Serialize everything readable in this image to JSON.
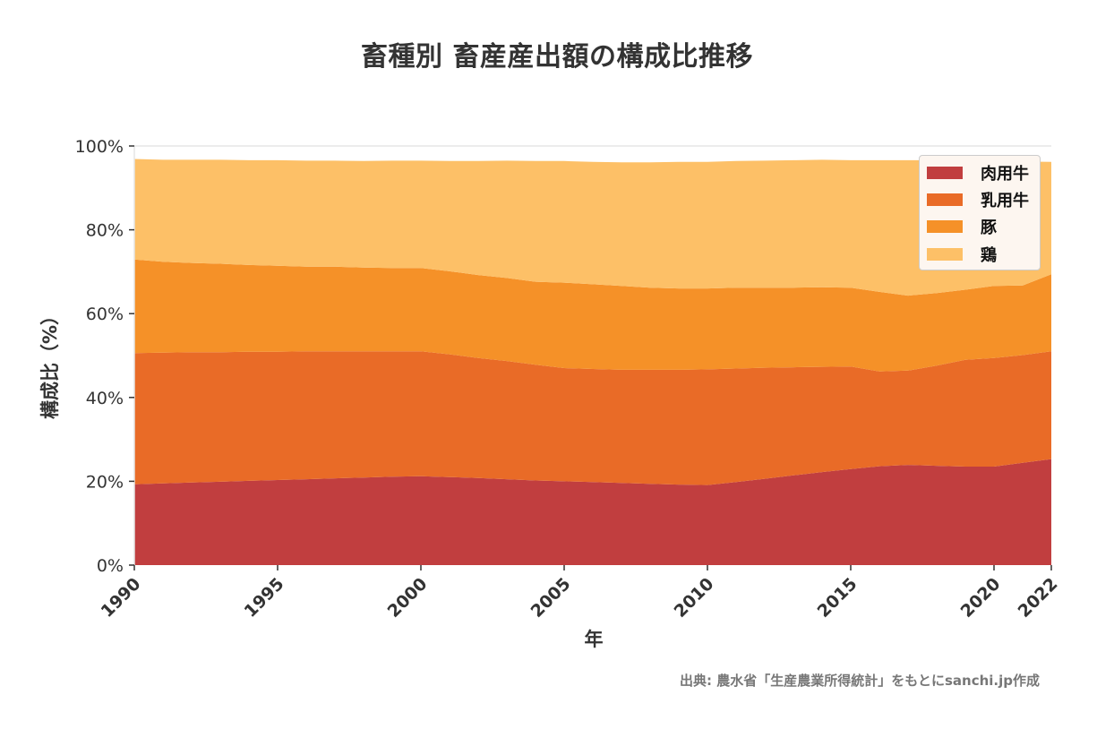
{
  "title": "畜種別 畜産産出額の構成比推移",
  "source": "出典: 農水省「生産農業所得統計」をもとにsanchi.jp作成",
  "colors": {
    "beef": "#c13e3f",
    "dairy": "#e96b27",
    "pig": "#f59128",
    "chicken": "#fdc067",
    "axis": "#333333",
    "grid": "#e5e5e5"
  },
  "legend": {
    "items": [
      {
        "label": "肉用牛",
        "color": "#c13e3f"
      },
      {
        "label": "乳用牛",
        "color": "#e96b27"
      },
      {
        "label": "豚",
        "color": "#f59128"
      },
      {
        "label": "鶏",
        "color": "#fdc067"
      }
    ]
  },
  "chart_data": {
    "type": "area",
    "stacked": true,
    "title": "畜種別 畜産産出額の構成比推移",
    "xlabel": "年",
    "ylabel": "構成比（%）",
    "ylim": [
      0,
      100
    ],
    "xlim": [
      1990,
      2022
    ],
    "x_ticks": [
      "1990",
      "1995",
      "2000",
      "2005",
      "2010",
      "2015",
      "2020",
      "2022"
    ],
    "y_ticks": [
      "0%",
      "20%",
      "40%",
      "60%",
      "80%",
      "100%"
    ],
    "legend_position": "upper right",
    "grid": false,
    "x": [
      1990,
      1991,
      1992,
      1993,
      1994,
      1995,
      1996,
      1997,
      1998,
      1999,
      2000,
      2001,
      2002,
      2003,
      2004,
      2005,
      2006,
      2007,
      2008,
      2009,
      2010,
      2011,
      2012,
      2013,
      2014,
      2015,
      2016,
      2017,
      2018,
      2019,
      2020,
      2021,
      2022
    ],
    "series": [
      {
        "name": "肉用牛",
        "values": [
          19.3,
          19.5,
          19.7,
          19.9,
          20.1,
          20.3,
          20.5,
          20.7,
          20.9,
          21.1,
          21.2,
          21.0,
          20.8,
          20.5,
          20.2,
          20.0,
          19.8,
          19.6,
          19.4,
          19.2,
          19.1,
          19.8,
          20.6,
          21.4,
          22.2,
          22.9,
          23.6,
          23.9,
          23.7,
          23.5,
          23.5,
          24.4,
          25.3
        ]
      },
      {
        "name": "乳用牛",
        "values": [
          31.3,
          31.2,
          31.1,
          30.9,
          30.8,
          30.6,
          30.5,
          30.3,
          30.1,
          29.9,
          29.8,
          29.3,
          28.6,
          28.2,
          27.6,
          27.0,
          27.0,
          27.0,
          27.2,
          27.4,
          27.6,
          27.1,
          26.5,
          25.8,
          25.1,
          24.5,
          22.6,
          22.5,
          23.9,
          25.5,
          25.9,
          25.7,
          25.7
        ]
      },
      {
        "name": "豚",
        "values": [
          22.3,
          21.7,
          21.3,
          21.1,
          20.7,
          20.5,
          20.2,
          20.2,
          20.0,
          19.9,
          19.9,
          19.8,
          19.8,
          19.8,
          19.8,
          20.4,
          20.2,
          20.0,
          19.6,
          19.4,
          19.3,
          19.3,
          19.1,
          19.0,
          19.0,
          18.8,
          19.0,
          17.9,
          17.3,
          16.7,
          17.2,
          16.6,
          18.4
        ]
      },
      {
        "name": "鶏",
        "values": [
          24.0,
          24.3,
          24.6,
          24.8,
          25.0,
          25.2,
          25.3,
          25.3,
          25.4,
          25.6,
          25.6,
          26.3,
          27.2,
          28.0,
          28.8,
          29.0,
          29.2,
          29.5,
          29.9,
          30.2,
          30.2,
          30.2,
          30.3,
          30.4,
          30.4,
          30.4,
          31.4,
          32.3,
          31.7,
          30.6,
          29.6,
          29.6,
          26.8
        ]
      }
    ],
    "cumulative_top_pct": [
      96.9,
      96.7,
      96.7,
      96.7,
      96.6,
      96.6,
      96.5,
      96.5,
      96.4,
      96.5,
      96.5,
      96.4,
      96.4,
      96.5,
      96.4,
      96.4,
      96.2,
      96.1,
      96.1,
      96.2,
      96.2,
      96.4,
      96.5,
      96.6,
      96.7,
      96.6,
      96.6,
      96.6,
      96.6,
      96.3,
      96.2,
      96.3,
      96.2
    ]
  },
  "axes": {
    "xlabel": "年",
    "ylabel": "構成比（%）"
  }
}
